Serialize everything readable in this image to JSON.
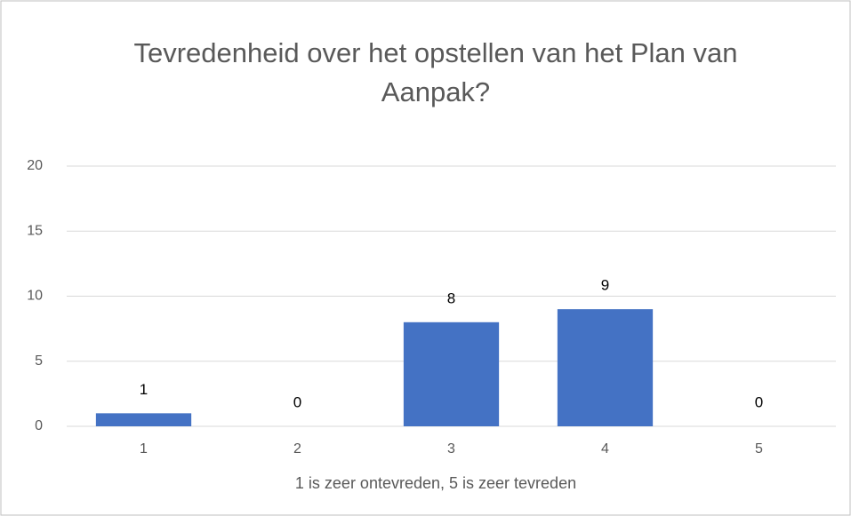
{
  "chart_data": {
    "type": "bar",
    "title": "Tevredenheid over het opstellen van het Plan van Aanpak?",
    "x_label": "1 is zeer ontevreden, 5 is zeer tevreden",
    "categories": [
      "1",
      "2",
      "3",
      "4",
      "5"
    ],
    "values": [
      1,
      0,
      8,
      9,
      0
    ],
    "color": "#4472c4",
    "ylim": [
      0,
      20
    ],
    "yticks": [
      0,
      5,
      10,
      15,
      20
    ],
    "grid": true,
    "data_labels": true
  }
}
